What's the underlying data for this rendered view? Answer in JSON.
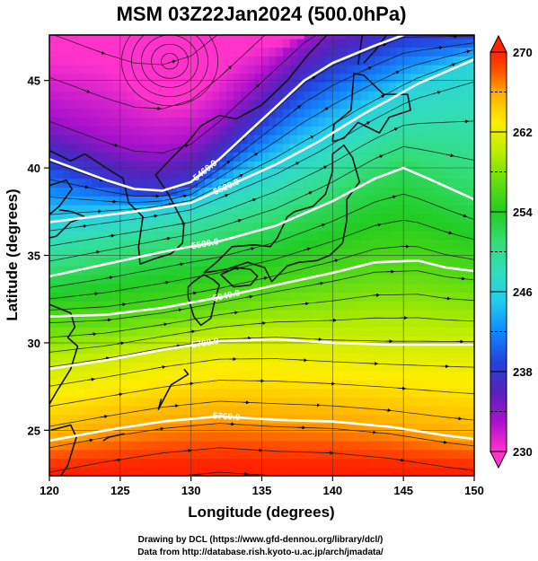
{
  "chart_data": {
    "type": "heatmap",
    "title": "MSM 03Z22Jan2024 (500.0hPa)",
    "xlabel": "Longitude (degrees)",
    "ylabel": "Latitude  (degrees)",
    "xlim": [
      120,
      150
    ],
    "ylim": [
      22.4,
      47.6
    ],
    "x_ticks": [
      120,
      125,
      130,
      135,
      140,
      145,
      150
    ],
    "y_ticks": [
      25,
      30,
      35,
      40,
      45
    ],
    "colorbar": {
      "min": 230,
      "max": 270,
      "tick_labels": [
        230,
        238,
        246,
        254,
        262,
        270
      ],
      "dashed_levels": [
        234,
        242,
        250,
        258,
        266
      ],
      "stops": [
        {
          "v": 230,
          "color": "#ff33cc"
        },
        {
          "v": 233,
          "color": "#aa11cc"
        },
        {
          "v": 236,
          "color": "#5522bb"
        },
        {
          "v": 239,
          "color": "#2244dd"
        },
        {
          "v": 242,
          "color": "#1188ff"
        },
        {
          "v": 245,
          "color": "#22ccee"
        },
        {
          "v": 248,
          "color": "#33ddbb"
        },
        {
          "v": 251,
          "color": "#33dd77"
        },
        {
          "v": 254,
          "color": "#22cc22"
        },
        {
          "v": 257,
          "color": "#66dd11"
        },
        {
          "v": 260,
          "color": "#bbee00"
        },
        {
          "v": 263,
          "color": "#ffee00"
        },
        {
          "v": 266,
          "color": "#ffaa00"
        },
        {
          "v": 268,
          "color": "#ff5500"
        },
        {
          "v": 270,
          "color": "#ff2200"
        }
      ]
    },
    "contours": [
      {
        "label": "5460.0",
        "points": [
          [
            120,
            40.5
          ],
          [
            124,
            39.3
          ],
          [
            126,
            38.8
          ],
          [
            128,
            38.7
          ],
          [
            130,
            39.2
          ],
          [
            132,
            40.5
          ],
          [
            134,
            42.0
          ],
          [
            136,
            43.5
          ],
          [
            138,
            45.0
          ],
          [
            140,
            46.0
          ],
          [
            143,
            47.0
          ],
          [
            145,
            47.6
          ]
        ]
      },
      {
        "label": "5520.0",
        "points": [
          [
            120,
            36.9
          ],
          [
            124,
            37.3
          ],
          [
            127,
            37.6
          ],
          [
            130,
            38.0
          ],
          [
            133,
            39.1
          ],
          [
            136,
            40.2
          ],
          [
            139,
            41.5
          ],
          [
            142,
            43.0
          ],
          [
            146,
            44.8
          ],
          [
            150,
            46.2
          ]
        ]
      },
      {
        "label": "5580.0",
        "points": [
          [
            120,
            33.8
          ],
          [
            124,
            34.5
          ],
          [
            128,
            35.2
          ],
          [
            132,
            35.8
          ],
          [
            136,
            36.7
          ],
          [
            140,
            38.1
          ],
          [
            143,
            39.4
          ],
          [
            145,
            40.0
          ],
          [
            147,
            39.3
          ],
          [
            150,
            38.2
          ]
        ]
      },
      {
        "label": "5640.0",
        "points": [
          [
            120,
            31.5
          ],
          [
            124,
            31.6
          ],
          [
            128,
            32.0
          ],
          [
            132,
            32.6
          ],
          [
            136,
            33.3
          ],
          [
            140,
            34.0
          ],
          [
            143,
            34.6
          ],
          [
            146,
            34.7
          ],
          [
            148,
            34.3
          ],
          [
            150,
            34.1
          ]
        ]
      },
      {
        "label": "5700.0",
        "points": [
          [
            120,
            28.5
          ],
          [
            124,
            29.0
          ],
          [
            128,
            29.6
          ],
          [
            132,
            30.1
          ],
          [
            136,
            30.2
          ],
          [
            140,
            30.0
          ],
          [
            144,
            29.9
          ],
          [
            150,
            29.9
          ]
        ]
      },
      {
        "label": "5760.0",
        "points": [
          [
            120,
            24.4
          ],
          [
            124,
            25.0
          ],
          [
            128,
            25.5
          ],
          [
            132,
            25.8
          ],
          [
            136,
            25.6
          ],
          [
            140,
            25.5
          ],
          [
            144,
            25.2
          ],
          [
            148,
            24.7
          ],
          [
            150,
            24.5
          ]
        ]
      }
    ]
  },
  "footer": {
    "line1": "Drawing by DCL (https://www.gfd-dennou.org/library/dcl/)",
    "line2": "Data from http://database.rish.kyoto-u.ac.jp/arch/jmadata/"
  }
}
